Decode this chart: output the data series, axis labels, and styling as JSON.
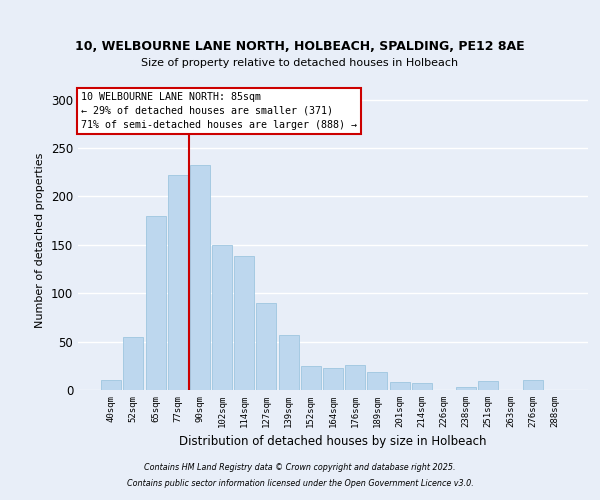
{
  "title_line1": "10, WELBOURNE LANE NORTH, HOLBEACH, SPALDING, PE12 8AE",
  "title_line2": "Size of property relative to detached houses in Holbeach",
  "xlabel": "Distribution of detached houses by size in Holbeach",
  "ylabel": "Number of detached properties",
  "bar_labels": [
    "40sqm",
    "52sqm",
    "65sqm",
    "77sqm",
    "90sqm",
    "102sqm",
    "114sqm",
    "127sqm",
    "139sqm",
    "152sqm",
    "164sqm",
    "176sqm",
    "189sqm",
    "201sqm",
    "214sqm",
    "226sqm",
    "238sqm",
    "251sqm",
    "263sqm",
    "276sqm",
    "288sqm"
  ],
  "bar_values": [
    10,
    55,
    180,
    222,
    232,
    150,
    138,
    90,
    57,
    25,
    23,
    26,
    19,
    8,
    7,
    0,
    3,
    9,
    0,
    10,
    0
  ],
  "bar_color": "#bdd7ee",
  "bar_edge_color": "#9ec6e0",
  "vline_color": "#cc0000",
  "annotation_title": "10 WELBOURNE LANE NORTH: 85sqm",
  "annotation_line2": "← 29% of detached houses are smaller (371)",
  "annotation_line3": "71% of semi-detached houses are larger (888) →",
  "annotation_box_color": "white",
  "annotation_box_edge": "#cc0000",
  "ylim": [
    0,
    310
  ],
  "yticks": [
    0,
    50,
    100,
    150,
    200,
    250,
    300
  ],
  "background_color": "#e8eef8",
  "grid_color": "#ffffff",
  "footer_line1": "Contains HM Land Registry data © Crown copyright and database right 2025.",
  "footer_line2": "Contains public sector information licensed under the Open Government Licence v3.0."
}
